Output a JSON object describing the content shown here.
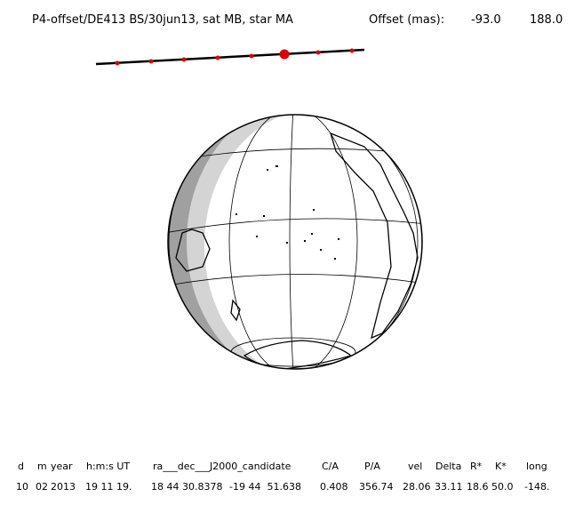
{
  "header": {
    "title": "P4-offset/DE413 BS/30jun13, sat MB, star MA",
    "offset_label": "Offset (mas):",
    "offset_values": [
      "-93.0",
      "188.0"
    ]
  },
  "table": {
    "headers": [
      "d",
      "m",
      "year",
      "h:m:s UT",
      "ra___dec___J2000_candidate",
      "C/A",
      "P/A",
      "vel",
      "Delta",
      "R*",
      "K*",
      "long"
    ],
    "rows": [
      [
        "10",
        "02",
        "2013",
        "19 11 19.",
        "18 44 30.8378",
        "-19 44  51.638",
        "0.408",
        "356.74",
        "28.06",
        "33.11",
        "18.6",
        "50.0",
        "-148."
      ]
    ]
  }
}
